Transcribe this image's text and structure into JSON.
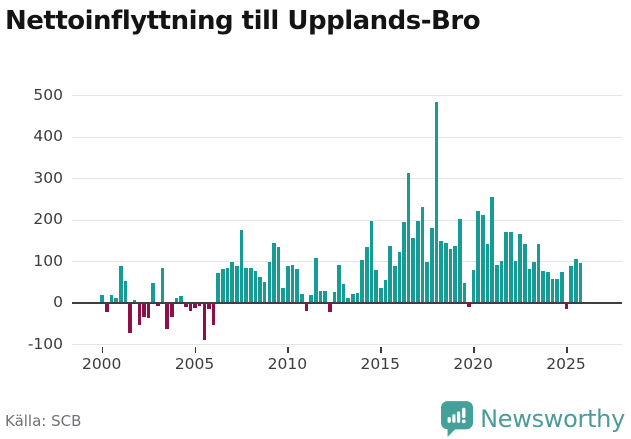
{
  "title": "Nettoinflyttning till Upplands-Bro",
  "source": "Källa: SCB",
  "brand": {
    "name": "Newsworthy"
  },
  "colors": {
    "positive_bar": "#169c94",
    "negative_bar": "#8e1048",
    "gridline": "#e4e4e4",
    "zero_line": "#3f3f3f",
    "axis_text": "#3c3c3c",
    "title_text": "#141414",
    "source_text": "#6e7178",
    "brand_teal": "#4b9c98",
    "brand_icon": "#43a19a"
  },
  "chart_data": {
    "type": "bar",
    "title": "Nettoinflyttning till Upplands-Bro",
    "xlabel": "",
    "ylabel": "",
    "unit": "persons per quarter (net in-migration)",
    "frequency": "quarterly",
    "start_year": 2000,
    "end_year": 2025,
    "grid": true,
    "legend": false,
    "ylim": [
      -100,
      500
    ],
    "y_ticks": [
      500,
      400,
      300,
      200,
      100,
      0,
      -100
    ],
    "x_tick_labels": [
      "2000",
      "2005",
      "2010",
      "2015",
      "2020",
      "2025"
    ],
    "series": [
      {
        "name": "Nettoinflyttning",
        "values": [
          17,
          -22,
          17,
          12,
          89,
          53,
          -74,
          5,
          -54,
          -34,
          -38,
          48,
          -8,
          82,
          -63,
          -36,
          10,
          16,
          -12,
          -20,
          -14,
          -9,
          -91,
          -15,
          -54,
          70,
          81,
          83,
          97,
          87,
          175,
          83,
          83,
          75,
          62,
          50,
          98,
          143,
          133,
          34,
          87,
          90,
          80,
          21,
          -21,
          17,
          107,
          28,
          28,
          -22,
          25,
          90,
          44,
          12,
          20,
          22,
          102,
          134,
          196,
          78,
          34,
          54,
          136,
          88,
          122,
          194,
          311,
          156,
          196,
          229,
          97,
          180,
          483,
          147,
          144,
          129,
          135,
          202,
          47,
          -10,
          78,
          221,
          211,
          142,
          254,
          90,
          99,
          170,
          170,
          100,
          165,
          140,
          80,
          97,
          142,
          77,
          74,
          56,
          56,
          74,
          -15,
          88,
          104,
          94
        ]
      }
    ]
  }
}
